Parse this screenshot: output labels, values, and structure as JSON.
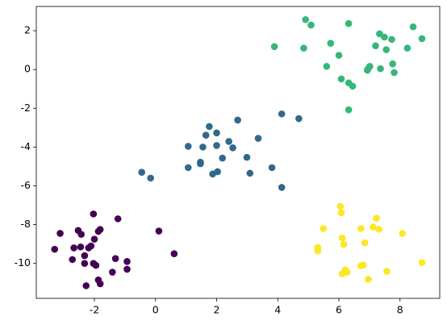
{
  "chart_data": {
    "type": "scatter",
    "xlim": [
      -3.9,
      9.3
    ],
    "ylim": [
      -11.8,
      3.25
    ],
    "xticks": [
      -2,
      0,
      2,
      4,
      6,
      8
    ],
    "yticks": [
      -10,
      -8,
      -6,
      -4,
      -2,
      0,
      2
    ],
    "series": [
      {
        "color": "#440154",
        "x": [
          -3.3,
          -3.12,
          -2.72,
          -2.67,
          -2.53,
          -2.43,
          -2.45,
          -2.32,
          -2.32,
          -2.27,
          -2.19,
          -2.11,
          -2.03,
          -2.0,
          -2.03,
          -1.95,
          -1.87,
          -1.81,
          -1.81,
          -1.87,
          -1.41,
          -1.31,
          -1.23,
          -0.93,
          -0.93,
          0.11,
          0.61
        ],
        "y": [
          -9.27,
          -8.45,
          -9.8,
          -9.2,
          -8.3,
          -8.5,
          -9.15,
          -9.6,
          -10.0,
          -11.15,
          -9.2,
          -9.1,
          -7.45,
          -8.75,
          -10.0,
          -10.1,
          -10.85,
          -11.05,
          -8.25,
          -8.35,
          -10.45,
          -9.75,
          -7.7,
          -9.9,
          -10.3,
          -8.33,
          -9.5
        ]
      },
      {
        "color": "#31688e",
        "x": [
          -0.45,
          -0.16,
          1.07,
          1.07,
          1.47,
          1.47,
          1.55,
          1.65,
          1.76,
          1.87,
          2.0,
          2.03,
          2.0,
          2.19,
          2.4,
          2.53,
          2.69,
          2.99,
          3.09,
          3.36,
          3.81,
          4.13,
          4.13,
          4.69
        ],
        "y": [
          -5.3,
          -5.6,
          -3.96,
          -5.06,
          -4.86,
          -4.78,
          -4.0,
          -3.39,
          -2.94,
          -5.39,
          -3.27,
          -5.27,
          -3.92,
          -4.57,
          -3.71,
          -4.04,
          -2.61,
          -4.53,
          -5.35,
          -3.55,
          -5.06,
          -2.29,
          -6.08,
          -2.53
        ]
      },
      {
        "color": "#35b779",
        "x": [
          3.89,
          4.85,
          4.91,
          5.09,
          5.6,
          5.73,
          6.0,
          6.08,
          6.32,
          6.32,
          6.45,
          6.32,
          7.2,
          7.33,
          7.49,
          7.55,
          7.73,
          7.36,
          6.96,
          7.01,
          7.76,
          7.81,
          8.24,
          8.43,
          8.72,
          6.93
        ],
        "y": [
          1.18,
          1.1,
          2.57,
          2.29,
          0.16,
          1.35,
          0.73,
          -0.49,
          2.37,
          -0.69,
          -0.86,
          -2.08,
          1.22,
          1.84,
          1.67,
          1.02,
          1.55,
          0.04,
          0.04,
          0.16,
          0.29,
          -0.16,
          1.1,
          2.2,
          1.59,
          -0.04
        ]
      },
      {
        "color": "#fde725",
        "x": [
          5.49,
          5.31,
          5.31,
          6.05,
          6.08,
          6.11,
          6.16,
          6.21,
          6.11,
          6.27,
          6.72,
          6.72,
          6.8,
          6.85,
          6.96,
          7.12,
          7.23,
          7.31,
          7.57,
          8.08,
          8.72
        ],
        "y": [
          -8.2,
          -9.18,
          -9.35,
          -7.06,
          -7.39,
          -8.69,
          -9.02,
          -10.33,
          -10.53,
          -10.45,
          -8.2,
          -10.12,
          -10.08,
          -8.94,
          -10.82,
          -8.12,
          -7.67,
          -8.24,
          -10.41,
          -8.45,
          -9.96
        ]
      }
    ]
  }
}
